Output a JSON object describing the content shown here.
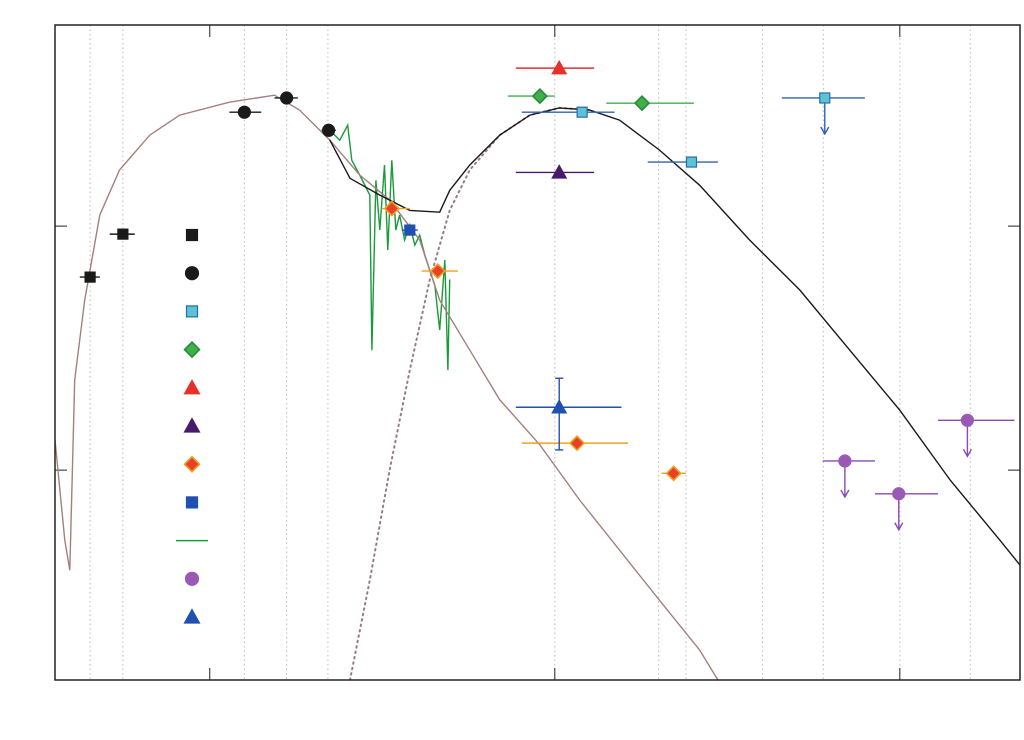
{
  "chart_data": {
    "type": "scatter",
    "log_x": true,
    "log_y": true,
    "xlim": [
      0.356,
      223
    ],
    "ylim": [
      0.138,
      66.7
    ],
    "xticks": [
      1,
      10,
      100
    ],
    "yticks": [
      1,
      10
    ],
    "grid_x": [
      0.45,
      0.56,
      1.26,
      1.67,
      2.2,
      10,
      20,
      24,
      40,
      60,
      100,
      160
    ],
    "series": [
      {
        "marker": "square",
        "color": "#1a1a1a",
        "err_color": "#1a1a1a",
        "x": [
          0.45,
          0.56
        ],
        "y": [
          6.18,
          9.27
        ],
        "xlo": [
          0.42,
          0.513
        ],
        "xhi": [
          0.48,
          0.606
        ]
      },
      {
        "marker": "circle",
        "color": "#1a1a1a",
        "err_color": "#1a1a1a",
        "x": [
          1.26,
          1.67,
          2.21
        ],
        "y": [
          29.3,
          33.5,
          24.7
        ],
        "xlo": [
          1.14,
          1.54,
          2.11
        ],
        "xhi": [
          1.41,
          1.8,
          2.32
        ]
      },
      {
        "marker": "square",
        "color": "#5bc4d0",
        "edge": "#2a6ab0",
        "err_color": "#3060b8",
        "x": [
          12.0,
          24.9,
          60.6
        ],
        "y": [
          29.3,
          18.3,
          33.5
        ],
        "xlo": [
          8.02,
          18.6,
          45.5
        ],
        "xhi": [
          14.9,
          29.7,
          79.2
        ],
        "upper_limit": [
          false,
          false,
          true
        ]
      },
      {
        "marker": "diamond",
        "color": "#3db04a",
        "edge": "#2a8a3a",
        "err_color": "#3db04a",
        "x": [
          9.05,
          17.9
        ],
        "y": [
          34.1,
          31.9
        ],
        "xlo": [
          7.31,
          14.1
        ],
        "xhi": [
          10,
          25.3
        ]
      },
      {
        "marker": "triangle",
        "color": "#e8302a",
        "err_color": "#e83030",
        "x": [
          10.3
        ],
        "y": [
          44.4
        ],
        "xlo": [
          7.71
        ],
        "xhi": [
          13.0
        ]
      },
      {
        "marker": "triangle",
        "color": "#4a1a6a",
        "err_color": "#4a1a6a",
        "x": [
          10.3
        ],
        "y": [
          16.6
        ],
        "xlo": [
          7.71
        ],
        "xhi": [
          13.0
        ]
      },
      {
        "marker": "diamond",
        "color": "#e8402a",
        "edge": "#f0a020",
        "err_color": "#f0a020",
        "x": [
          3.37,
          4.58,
          11.6,
          22.1
        ],
        "y": [
          11.8,
          6.54,
          1.29,
          0.97
        ],
        "xlo": [
          3.15,
          4.11,
          8.02,
          20.4
        ],
        "xhi": [
          3.8,
          5.24,
          16.3,
          24.0
        ]
      },
      {
        "marker": "square",
        "color": "#2050b0",
        "err_color": "#2050b0",
        "x": [
          3.8
        ],
        "y": [
          9.63
        ],
        "xlo": [
          3.6
        ],
        "xhi": [
          4.01
        ]
      },
      {
        "style": "solid",
        "color": "#1a9a3a",
        "x": [
          2.23,
          2.38,
          2.51,
          2.58,
          2.72,
          2.91,
          2.95,
          3.03,
          3.11,
          3.21,
          3.28,
          3.37,
          3.46,
          3.55,
          3.67,
          3.8,
          3.93,
          4.06,
          4.2,
          4.34,
          4.49,
          4.64,
          4.8,
          4.9,
          4.96
        ],
        "y": [
          24.7,
          22.5,
          25.9,
          18.6,
          16.2,
          13.4,
          3.1,
          15.4,
          9.63,
          17.8,
          7.97,
          18.6,
          9.63,
          11.1,
          8.77,
          10.1,
          8.36,
          9.19,
          7.61,
          6.6,
          5.73,
          3.75,
          7.26,
          2.57,
          6.01
        ]
      },
      {
        "marker": "circle",
        "color": "#9b59b6",
        "err_color": "#8a4ab0",
        "x": [
          69.3,
          99.3,
          157
        ],
        "y": [
          1.09,
          0.8,
          1.6
        ],
        "xlo": [
          59.8,
          84.7,
          129
        ],
        "xhi": [
          84.7,
          129,
          215
        ],
        "upper_limit": [
          true,
          true,
          true
        ]
      },
      {
        "marker": "triangle",
        "color": "#2050b0",
        "err_color": "#2050b0",
        "x": [
          10.3
        ],
        "y": [
          1.81
        ],
        "xlo": [
          7.71
        ],
        "xhi": [
          15.6
        ],
        "ylo": [
          1.21
        ],
        "yhi": [
          2.38
        ]
      },
      {
        "style": "solid",
        "color": "#a67f7c",
        "x": [
          0.356,
          0.38,
          0.393,
          0.406,
          0.434,
          0.48,
          0.548,
          0.67,
          0.819,
          1.14,
          1.54,
          1.82,
          2.23,
          2.72,
          3.32,
          4.06,
          4.64,
          5.67,
          6.93,
          9.05,
          11.8,
          15.4,
          20.1,
          26.3,
          29.7
        ],
        "y": [
          1.33,
          0.516,
          0.389,
          2.34,
          4.97,
          11.1,
          17.0,
          23.6,
          28.5,
          32.2,
          34.4,
          29.9,
          22.5,
          16.2,
          12.8,
          8.77,
          4.97,
          3.1,
          1.94,
          1.27,
          0.754,
          0.47,
          0.293,
          0.183,
          0.138
        ]
      },
      {
        "style": "dotted",
        "color": "#9a7a8a",
        "x": [
          2.55,
          2.91,
          3.32,
          3.8,
          4.34,
          4.96,
          5.67,
          6.93,
          8.47,
          10.3,
          12.6
        ],
        "y": [
          0.138,
          0.354,
          1.0,
          2.57,
          6.01,
          11.6,
          17.0,
          23.6,
          28.5,
          30.5,
          29.9
        ]
      },
      {
        "style": "solid",
        "color": "#1a1a1a",
        "x": [
          2.23,
          2.55,
          3.11,
          3.8,
          4.64,
          4.96,
          5.67,
          6.93,
          8.47,
          10.3,
          12.6,
          15.4,
          20.1,
          26.3,
          36.7,
          51.3,
          71.6,
          100,
          140,
          195,
          223
        ],
        "y": [
          22.5,
          15.7,
          13.4,
          11.6,
          11.4,
          14.0,
          17.8,
          23.6,
          28.5,
          30.5,
          29.9,
          27.2,
          20.5,
          14.7,
          8.77,
          5.47,
          3.1,
          1.76,
          0.91,
          0.516,
          0.408
        ]
      }
    ]
  }
}
